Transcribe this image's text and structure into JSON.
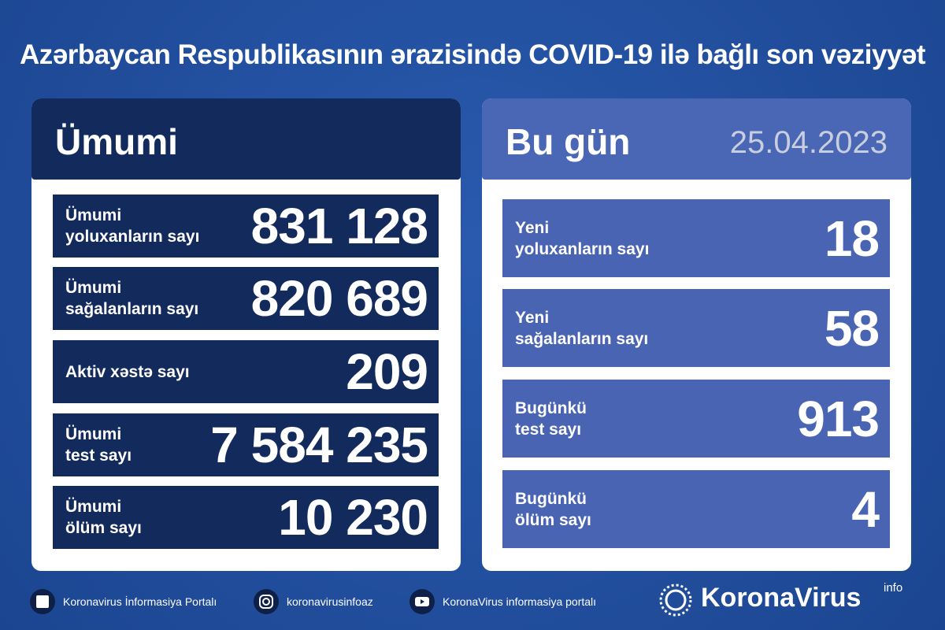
{
  "header": {
    "title": "Azərbaycan Respublikasının ərazisində COVID-19 ilə bağlı son vəziyyət"
  },
  "total": {
    "title": "Ümumi",
    "rows": [
      {
        "label": [
          "Ümumi",
          "yoluxanların sayı"
        ],
        "value": "831 128"
      },
      {
        "label": [
          "Ümumi",
          "sağalanların sayı"
        ],
        "value": "820 689"
      },
      {
        "label": [
          "Aktiv xəstə sayı"
        ],
        "value": "209"
      },
      {
        "label": [
          "Ümumi",
          "test sayı"
        ],
        "value": "7 584 235"
      },
      {
        "label": [
          "Ümumi",
          "ölüm sayı"
        ],
        "value": "10 230"
      }
    ]
  },
  "today": {
    "title": "Bu gün",
    "date": "25.04.2023",
    "rows": [
      {
        "label": [
          "Yeni",
          "yoluxanların sayı"
        ],
        "value": "18"
      },
      {
        "label": [
          "Yeni",
          "sağalanların sayı"
        ],
        "value": "58"
      },
      {
        "label": [
          "Bugünkü",
          "test sayı"
        ],
        "value": "913"
      },
      {
        "label": [
          "Bugünkü",
          "ölüm sayı"
        ],
        "value": "4"
      }
    ]
  },
  "footer": {
    "links": [
      {
        "text": "Koronavirus İnformasiya Portalı"
      },
      {
        "text": "koronavirusinfoaz"
      },
      {
        "text": "KoronaVirus informasiya portalı"
      }
    ],
    "logo": "KoronaVirus",
    "logo_suffix": "info"
  }
}
